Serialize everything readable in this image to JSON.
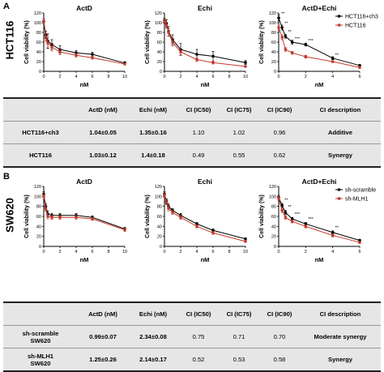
{
  "panel_a": {
    "letter": "A",
    "cell_label": "HCT116",
    "table": {
      "headers": [
        "",
        "ActD (nM)",
        "Echi (nM)",
        "CI (IC50)",
        "CI (IC75)",
        "CI (IC90)",
        "CI description"
      ],
      "rows": [
        [
          "HCT116+ch3",
          "1.04±0.05",
          "1.35±0.16",
          "1.10",
          "1.02",
          "0.96",
          "Additive"
        ],
        [
          "HCT116",
          "1.03±0.12",
          "1.4±0.18",
          "0.49",
          "0.55",
          "0.62",
          "Synergy"
        ]
      ]
    }
  },
  "panel_b": {
    "letter": "B",
    "cell_label": "SW620",
    "table": {
      "headers": [
        "",
        "ActD (nM)",
        "Echi (nM)",
        "CI (IC50)",
        "CI (IC75)",
        "CI (IC90)",
        "CI description"
      ],
      "rows": [
        [
          "sh-scramble\nSW620",
          "0.99±0.07",
          "2.34±0.08",
          "0.75",
          "0.71",
          "0.70",
          "Moderate synergy"
        ],
        [
          "sh-MLH1\nSW620",
          "1.25±0.26",
          "2.14±0.17",
          "0.52",
          "0.53",
          "0.58",
          "Synergy"
        ]
      ]
    }
  },
  "chart_data": [
    {
      "type": "line",
      "panel": "A",
      "title": "ActD",
      "xlabel": "nM",
      "ylabel": "Cell viability (%)",
      "xlim": [
        0,
        10
      ],
      "ylim": [
        0,
        120
      ],
      "xticks": [
        0,
        2,
        4,
        6,
        8,
        10
      ],
      "yticks": [
        0,
        20,
        40,
        60,
        80,
        100,
        120
      ],
      "x": [
        0,
        0.25,
        0.5,
        1,
        2,
        4,
        6,
        10
      ],
      "series": [
        {
          "name": "HCT116+ch3",
          "color": "#000000",
          "values": [
            103,
            75,
            62,
            55,
            45,
            38,
            35,
            17
          ],
          "errors": [
            5,
            8,
            15,
            10,
            8,
            5,
            4,
            3
          ]
        },
        {
          "name": "HCT116",
          "color": "#c0392b",
          "values": [
            103,
            70,
            58,
            50,
            40,
            33,
            28,
            15
          ],
          "errors": [
            5,
            8,
            10,
            8,
            6,
            4,
            3,
            2
          ]
        }
      ]
    },
    {
      "type": "line",
      "panel": "A",
      "title": "Echi",
      "xlabel": "nM",
      "ylabel": "Cell viability (%)",
      "xlim": [
        0,
        10
      ],
      "ylim": [
        0,
        120
      ],
      "xticks": [
        0,
        2,
        4,
        6,
        8,
        10
      ],
      "yticks": [
        0,
        20,
        40,
        60,
        80,
        100,
        120
      ],
      "x": [
        0,
        0.25,
        0.5,
        1,
        2,
        4,
        6,
        10
      ],
      "series": [
        {
          "name": "HCT116+ch3",
          "color": "#000000",
          "values": [
            105,
            98,
            82,
            65,
            45,
            35,
            31,
            18
          ],
          "errors": [
            4,
            8,
            10,
            10,
            12,
            10,
            10,
            4
          ]
        },
        {
          "name": "HCT116",
          "color": "#c0392b",
          "values": [
            103,
            95,
            80,
            60,
            40,
            24,
            18,
            10
          ],
          "errors": [
            4,
            6,
            8,
            8,
            6,
            4,
            3,
            2
          ]
        }
      ]
    },
    {
      "type": "line",
      "panel": "A",
      "title": "ActD+Echi",
      "xlabel": "nM",
      "ylabel": "Cell viability (%)",
      "xlim": [
        0,
        6
      ],
      "ylim": [
        0,
        120
      ],
      "xticks": [
        0,
        2,
        4,
        6
      ],
      "yticks": [
        0,
        20,
        40,
        60,
        80,
        100,
        120
      ],
      "x": [
        0,
        0.25,
        0.5,
        1,
        2,
        4,
        6
      ],
      "series": [
        {
          "name": "HCT116+ch3",
          "color": "#000000",
          "values": [
            110,
            90,
            72,
            60,
            55,
            27,
            12
          ],
          "errors": [
            6,
            5,
            4,
            4,
            3,
            3,
            2
          ]
        },
        {
          "name": "HCT116",
          "color": "#c0392b",
          "values": [
            90,
            70,
            45,
            38,
            30,
            20,
            8
          ],
          "errors": [
            5,
            5,
            4,
            3,
            3,
            2,
            2
          ]
        }
      ],
      "legend": [
        "HCT116+ch3",
        "HCT116"
      ],
      "legend_position": "top-right",
      "annotations": [
        {
          "x": 0,
          "y": 116,
          "text": "**"
        },
        {
          "x": 0.25,
          "y": 96,
          "text": "**"
        },
        {
          "x": 0.5,
          "y": 78,
          "text": "**"
        },
        {
          "x": 1,
          "y": 64,
          "text": "***"
        },
        {
          "x": 2,
          "y": 60,
          "text": "***"
        },
        {
          "x": 4,
          "y": 31,
          "text": "**"
        }
      ]
    },
    {
      "type": "line",
      "panel": "B",
      "title": "ActD",
      "xlabel": "nM",
      "ylabel": "Cell viability (%)",
      "xlim": [
        0,
        10
      ],
      "ylim": [
        0,
        120
      ],
      "xticks": [
        0,
        2,
        4,
        6,
        8,
        10
      ],
      "yticks": [
        0,
        20,
        40,
        60,
        80,
        100,
        120
      ],
      "x": [
        0,
        0.25,
        0.5,
        1,
        2,
        4,
        6,
        10
      ],
      "series": [
        {
          "name": "sh-scramble",
          "color": "#000000",
          "values": [
            105,
            80,
            65,
            62,
            62,
            62,
            58,
            35
          ],
          "errors": [
            5,
            5,
            6,
            4,
            4,
            4,
            3,
            3
          ]
        },
        {
          "name": "sh-MLH1",
          "color": "#c0392b",
          "values": [
            100,
            75,
            60,
            58,
            58,
            58,
            55,
            33
          ],
          "errors": [
            5,
            5,
            5,
            4,
            4,
            4,
            3,
            3
          ]
        }
      ]
    },
    {
      "type": "line",
      "panel": "B",
      "title": "Echi",
      "xlabel": "nM",
      "ylabel": "Cell viability (%)",
      "xlim": [
        0,
        10
      ],
      "ylim": [
        0,
        120
      ],
      "xticks": [
        0,
        2,
        4,
        6,
        8,
        10
      ],
      "yticks": [
        0,
        20,
        40,
        60,
        80,
        100,
        120
      ],
      "x": [
        0,
        0.25,
        0.5,
        1,
        2,
        4,
        6,
        10
      ],
      "series": [
        {
          "name": "sh-scramble",
          "color": "#000000",
          "values": [
            105,
            90,
            80,
            72,
            62,
            45,
            32,
            15
          ],
          "errors": [
            4,
            5,
            5,
            4,
            4,
            3,
            3,
            2
          ]
        },
        {
          "name": "sh-MLH1",
          "color": "#c0392b",
          "values": [
            102,
            88,
            76,
            68,
            58,
            40,
            27,
            10
          ],
          "errors": [
            4,
            5,
            5,
            4,
            4,
            3,
            3,
            2
          ]
        }
      ]
    },
    {
      "type": "line",
      "panel": "B",
      "title": "ActD+Echi",
      "xlabel": "nM",
      "ylabel": "Cell viability (%)",
      "xlim": [
        0,
        6
      ],
      "ylim": [
        0,
        120
      ],
      "xticks": [
        0,
        2,
        4,
        6
      ],
      "yticks": [
        0,
        20,
        40,
        60,
        80,
        100,
        120
      ],
      "x": [
        0,
        0.25,
        0.5,
        1,
        2,
        4,
        6
      ],
      "series": [
        {
          "name": "sh-scramble",
          "color": "#000000",
          "values": [
            98,
            82,
            68,
            55,
            45,
            28,
            12
          ],
          "errors": [
            4,
            4,
            4,
            3,
            3,
            3,
            2
          ]
        },
        {
          "name": "sh-MLH1",
          "color": "#c0392b",
          "values": [
            96,
            72,
            58,
            50,
            40,
            22,
            8
          ],
          "errors": [
            4,
            4,
            4,
            3,
            3,
            3,
            2
          ]
        }
      ],
      "legend": [
        "sh-scramble",
        "sh-MLH1"
      ],
      "legend_position": "top-right",
      "annotations": [
        {
          "x": 0.25,
          "y": 90,
          "text": "**"
        },
        {
          "x": 0.5,
          "y": 76,
          "text": "**"
        },
        {
          "x": 1,
          "y": 62,
          "text": "***"
        },
        {
          "x": 2,
          "y": 52,
          "text": "***"
        },
        {
          "x": 4,
          "y": 35,
          "text": "**"
        }
      ]
    }
  ]
}
